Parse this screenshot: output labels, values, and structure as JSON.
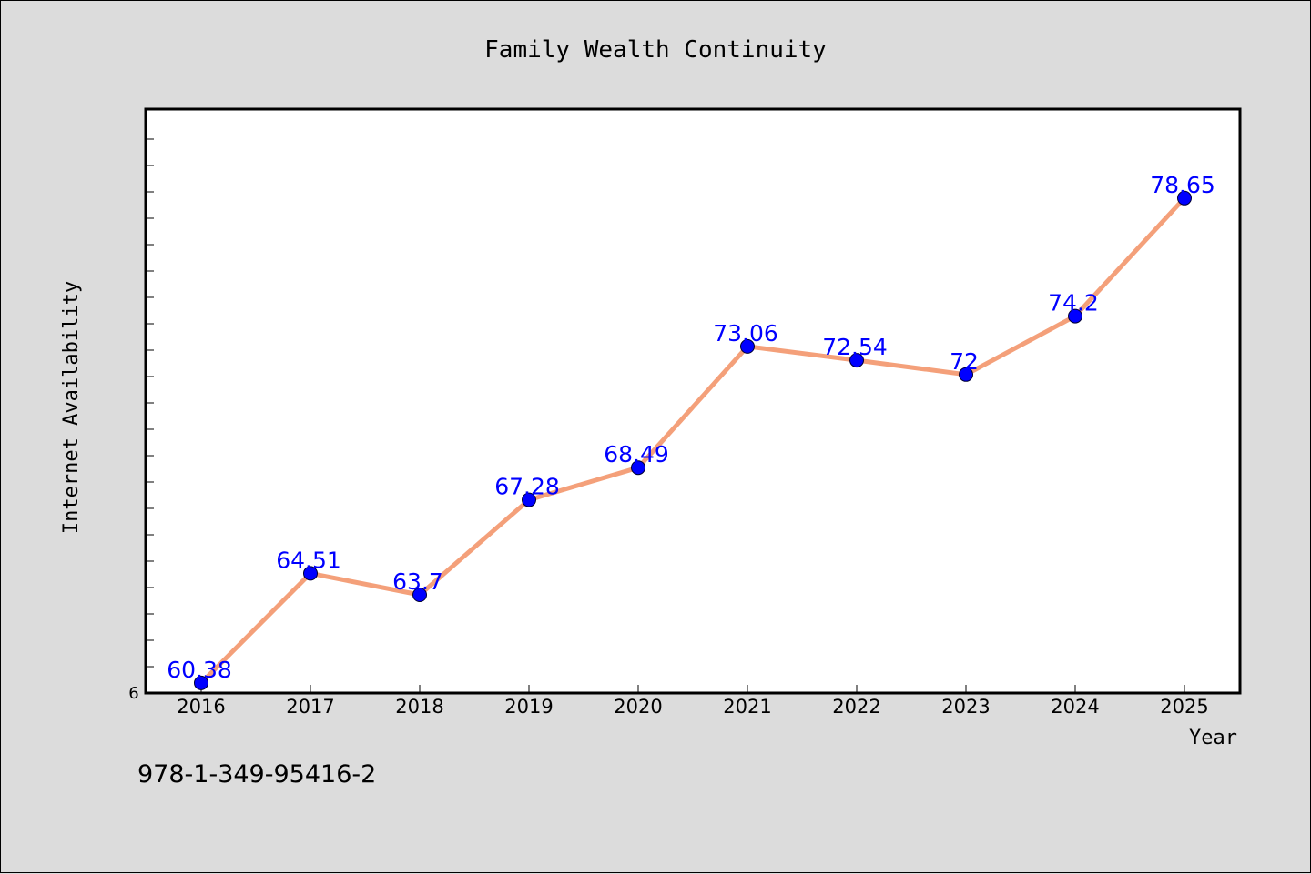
{
  "chart_data": {
    "type": "line",
    "title": "Family Wealth Continuity",
    "xlabel": "Year",
    "ylabel": "Internet Availability",
    "x": [
      "2016",
      "2017",
      "2018",
      "2019",
      "2020",
      "2021",
      "2022",
      "2023",
      "2024",
      "2025"
    ],
    "series": [
      {
        "values": [
          60.38,
          64.51,
          63.7,
          67.28,
          68.49,
          73.06,
          72.54,
          72,
          74.2,
          78.65
        ]
      }
    ],
    "ylim": [
      60,
      82
    ],
    "y_tick_label": "6",
    "grid": false,
    "legend": "none",
    "colors": {
      "line": "#f4a07a",
      "marker": "#0000ff",
      "data_label": "#0000ff",
      "background": "#dcdcdc",
      "plot_background": "#ffffff"
    }
  },
  "footnote": "978-1-349-95416-2"
}
